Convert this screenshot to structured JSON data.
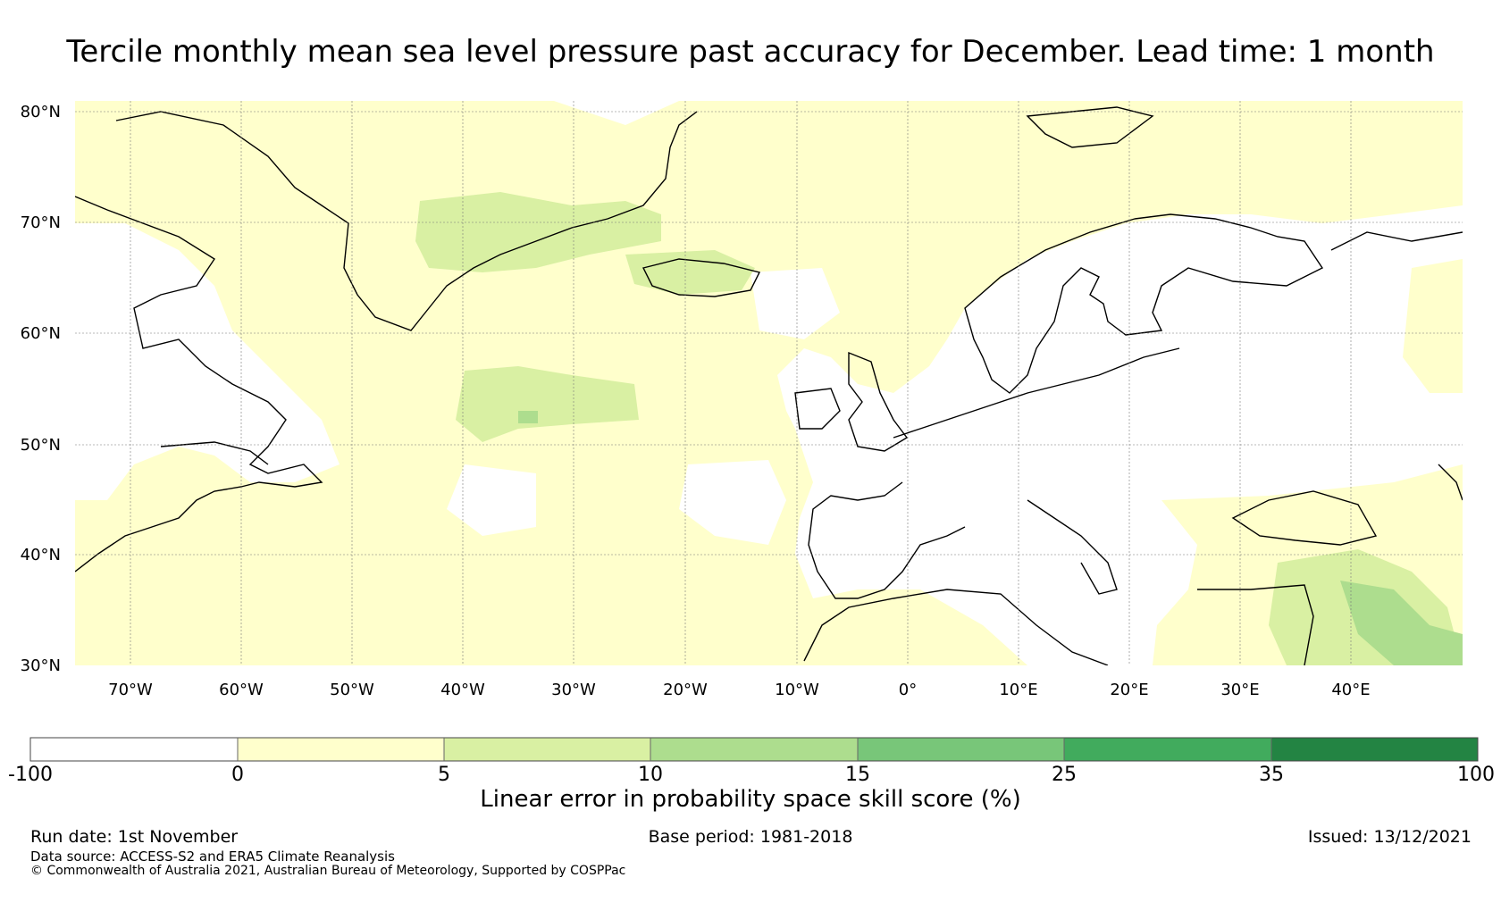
{
  "title": "Tercile monthly mean sea level pressure past accuracy for December. Lead time: 1 month",
  "map": {
    "lat_labels": [
      "80°N",
      "70°N",
      "60°N",
      "50°N",
      "40°N",
      "30°N"
    ],
    "lon_labels": [
      "70°W",
      "60°W",
      "50°W",
      "40°W",
      "30°W",
      "20°W",
      "10°W",
      "0°",
      "10°E",
      "20°E",
      "30°E",
      "40°E"
    ],
    "lat_range": [
      30,
      80
    ],
    "lon_range": [
      -75,
      50
    ],
    "regions": [
      {
        "skill_bin": "0-5",
        "description_color": "#ffffcc"
      },
      {
        "skill_bin": "5-10",
        "description_color": "#d9f0a3"
      },
      {
        "skill_bin": "10-15",
        "description_color": "#addd8e"
      }
    ]
  },
  "colorbar": {
    "title": "Linear error in probability space skill score (%)",
    "ticks": [
      "-100",
      "0",
      "5",
      "10",
      "15",
      "25",
      "35",
      "100"
    ],
    "colors": [
      "#ffffff",
      "#ffffcc",
      "#d9f0a3",
      "#addd8e",
      "#78c679",
      "#41ab5d",
      "#238443"
    ]
  },
  "footer": {
    "run_date": "Run date: 1st November",
    "base_period": "Base period: 1981-2018",
    "issued": "Issued: 13/12/2021",
    "data_source": "Data source: ACCESS-S2 and ERA5 Climate Reanalysis",
    "copyright": "© Commonwealth of Australia 2021, Australian Bureau of Meteorology, Supported by COSPPac"
  }
}
